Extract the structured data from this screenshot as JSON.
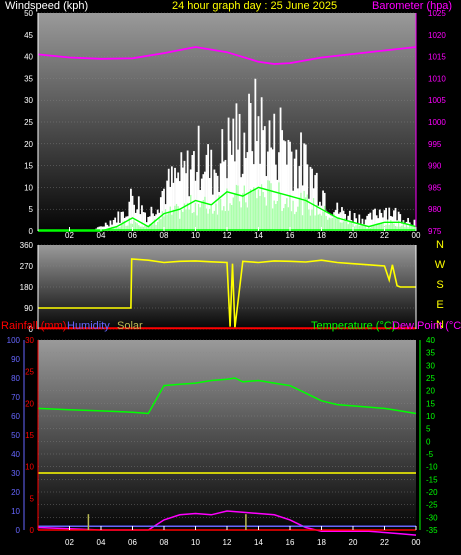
{
  "header": {
    "windspeed_label": "Windspeed (kph)",
    "graph_title": "24 hour graph day : 25 June 2025",
    "barometer_label": "Barometer (hpa)"
  },
  "legend": {
    "rainfall": "Rainfall (mm)",
    "humidity": "Humidity",
    "solar": "Solar",
    "temperature": "Temperature (°C)",
    "dewpoint": "Dew Point (°C)"
  },
  "colors": {
    "wind": "#ffffff",
    "gust_green": "#00ff00",
    "barometer": "#ff00ff",
    "direction": "#ffff00",
    "rain": "#ff0000",
    "humidity": "#6666ff",
    "solar": "#bbbb55",
    "temperature": "#00ff00",
    "dewpoint": "#ff00ff",
    "axis": "#ffffff"
  },
  "chart_data": [
    {
      "type": "area",
      "title": "24 hour graph day : 25 June 2025",
      "xlabel": "",
      "x_ticks": [
        "02",
        "04",
        "06",
        "08",
        "10",
        "12",
        "14",
        "16",
        "18",
        "20",
        "22",
        "00"
      ],
      "x_range_hours": [
        0,
        24
      ],
      "ylabel": "Windspeed (kph)",
      "ylim": [
        0,
        50
      ],
      "y_ticks": [
        0,
        5,
        10,
        15,
        20,
        25,
        30,
        35,
        40,
        45,
        50
      ],
      "y2label": "Barometer (hpa)",
      "y2lim": [
        975,
        1025
      ],
      "y2_ticks": [
        975,
        980,
        985,
        990,
        995,
        1000,
        1005,
        1010,
        1015,
        1020,
        1025
      ],
      "series": [
        {
          "name": "Barometer (hpa)",
          "axis": "right",
          "x": [
            0,
            2,
            4,
            6,
            8,
            10,
            12,
            14,
            15,
            16,
            18,
            20,
            22,
            24
          ],
          "values": [
            1015.5,
            1014.8,
            1014.5,
            1014.6,
            1015.8,
            1017.2,
            1016.0,
            1013.8,
            1013.3,
            1013.5,
            1014.8,
            1015.6,
            1016.4,
            1017.2
          ]
        },
        {
          "name": "Wind gust",
          "x": [
            0,
            3.5,
            4.5,
            5.5,
            6,
            7,
            8,
            9,
            9.5,
            10,
            10.5,
            11,
            11.5,
            12,
            12.5,
            13,
            13.5,
            14,
            14.5,
            15,
            15.5,
            16,
            16.5,
            17,
            17.5,
            18,
            18.5,
            19,
            20,
            21,
            22,
            23,
            24
          ],
          "values": [
            0,
            0,
            3,
            6,
            12,
            5,
            14,
            18,
            20,
            24,
            26,
            20,
            23,
            28,
            32,
            30,
            34,
            37,
            31,
            29,
            33,
            28,
            24,
            22,
            18,
            15,
            9,
            7,
            5,
            4,
            8,
            5,
            3
          ]
        },
        {
          "name": "Wind average",
          "x": [
            0,
            4,
            5,
            6,
            7,
            8,
            9,
            10,
            11,
            12,
            13,
            14,
            15,
            16,
            17,
            18,
            19,
            20,
            21,
            22,
            23,
            24
          ],
          "values": [
            0,
            0,
            1,
            3,
            1,
            4,
            5,
            7,
            6,
            9,
            8,
            10,
            9,
            8,
            7,
            5,
            3,
            2,
            1,
            2,
            2,
            1
          ]
        }
      ]
    },
    {
      "type": "line",
      "title": "",
      "ylabel": "",
      "ylim": [
        0,
        360
      ],
      "y_ticks": [
        0,
        90,
        180,
        270,
        360
      ],
      "right_labels": [
        "N",
        "W",
        "S",
        "E",
        "N"
      ],
      "x_ticks": [
        "02",
        "04",
        "06",
        "08",
        "10",
        "12",
        "14",
        "16",
        "18",
        "20",
        "22",
        "00"
      ],
      "series": [
        {
          "name": "Wind direction",
          "x": [
            0,
            5.9,
            5.95,
            7,
            8,
            9,
            10,
            11,
            12,
            12.2,
            12.35,
            12.5,
            13,
            14,
            15,
            16,
            17,
            18,
            19,
            20,
            21,
            22,
            22.3,
            22.5,
            22.8,
            23,
            24
          ],
          "values": [
            90,
            90,
            300,
            295,
            285,
            290,
            292,
            288,
            285,
            10,
            280,
            5,
            290,
            285,
            292,
            290,
            287,
            295,
            285,
            280,
            275,
            270,
            210,
            275,
            185,
            180,
            180
          ]
        },
        {
          "name": "Rain rate",
          "x": [
            0,
            24
          ],
          "values": [
            3,
            3
          ]
        }
      ]
    },
    {
      "type": "line",
      "title": "",
      "xlabel": "",
      "x_ticks": [
        "02",
        "04",
        "06",
        "08",
        "10",
        "12",
        "14",
        "16",
        "18",
        "20",
        "22",
        "00"
      ],
      "humidity_ticks": [
        0,
        10,
        20,
        30,
        40,
        50,
        60,
        70,
        80,
        90,
        100
      ],
      "rainfall_ticks": [
        0,
        5,
        10,
        15,
        20,
        25,
        30
      ],
      "temperature_ticks": [
        -35,
        -30,
        -25,
        -20,
        -15,
        -10,
        -5,
        0,
        5,
        10,
        15,
        20,
        25,
        30,
        35,
        40
      ],
      "series": [
        {
          "name": "Temperature (°C)",
          "axis": "temperature",
          "x": [
            0,
            2,
            4,
            6,
            7,
            8,
            9,
            10,
            11,
            12,
            12.5,
            13,
            14,
            15,
            16,
            17,
            18,
            19,
            20,
            21,
            22,
            23,
            24
          ],
          "values": [
            13,
            12.5,
            12,
            11.5,
            11,
            22,
            22.5,
            23,
            24,
            24.5,
            25,
            23.5,
            24,
            23,
            22,
            19,
            16,
            14.5,
            14,
            13.5,
            13,
            12,
            11
          ]
        },
        {
          "name": "Dew Point (°C)",
          "axis": "temperature",
          "x": [
            0,
            2,
            4,
            6,
            7,
            8,
            9,
            10,
            11,
            12,
            13,
            14,
            15,
            16,
            17,
            18,
            19,
            20,
            21,
            22,
            23,
            24
          ],
          "values": [
            -34,
            -34.5,
            -35,
            -35,
            -35,
            -31,
            -29,
            -28.5,
            -29,
            -27.5,
            -28,
            -28.5,
            -29,
            -31,
            -34,
            -35.5,
            -35.5,
            -35.5,
            -35.5,
            -36,
            -36.5,
            -37
          ]
        },
        {
          "name": "Humidity",
          "axis": "humidity",
          "x": [
            0,
            24
          ],
          "values": [
            2,
            2
          ]
        },
        {
          "name": "Solar",
          "axis": "rainfall",
          "x": [
            0,
            24
          ],
          "values": [
            9,
            9
          ]
        },
        {
          "name": "Rainfall (mm)",
          "axis": "rainfall",
          "x": [
            0,
            24
          ],
          "values": [
            0,
            0
          ]
        }
      ]
    }
  ]
}
